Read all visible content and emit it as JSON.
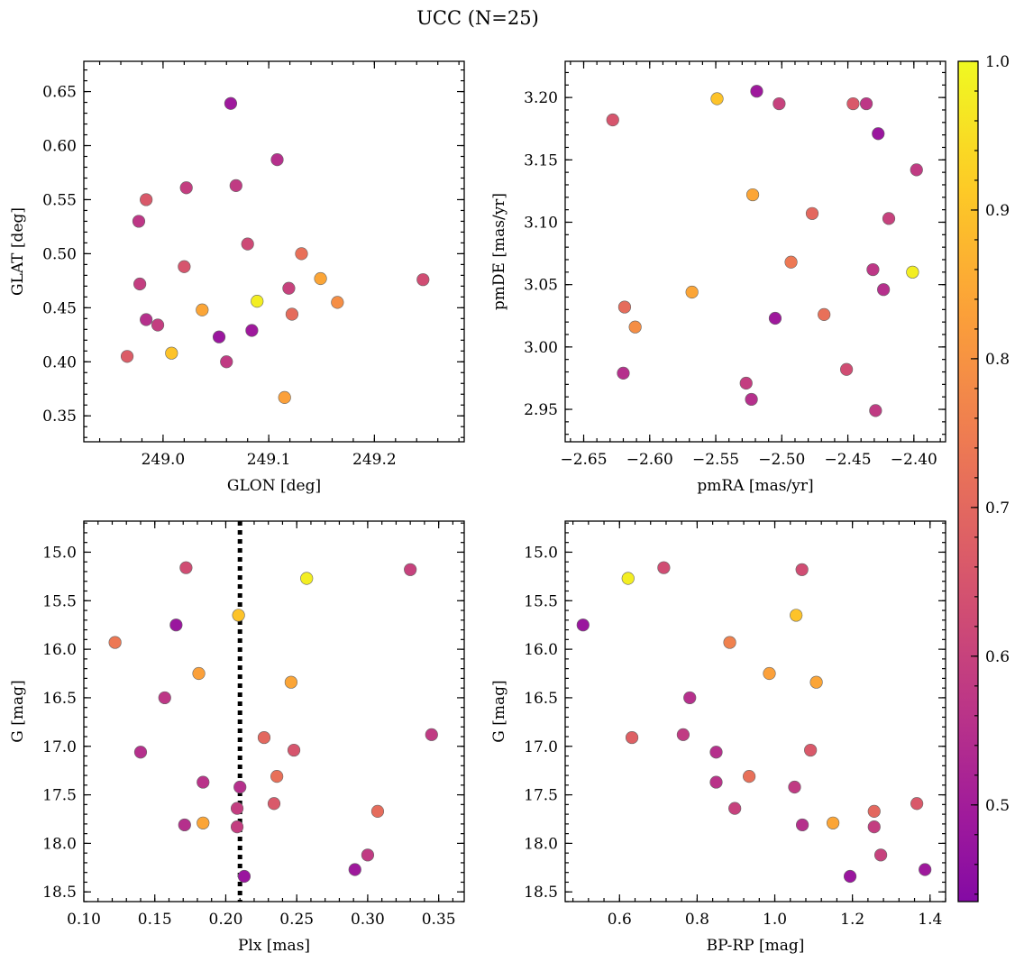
{
  "figure": {
    "title": "UCC (N=25)"
  },
  "colorbar": {
    "min": 0.435,
    "max": 1.0,
    "ticks": [
      0.5,
      0.6,
      0.7,
      0.8,
      0.9,
      1.0
    ],
    "tick_labels": [
      "0.5",
      "0.6",
      "0.7",
      "0.8",
      "0.9",
      "1.0"
    ],
    "colormap": "plasma"
  },
  "chart_data": [
    {
      "type": "scatter",
      "xlabel": "GLON [deg]",
      "ylabel": "GLAT [deg]",
      "xlim": [
        248.925,
        249.285
      ],
      "ylim": [
        0.326,
        0.678
      ],
      "xticks": [
        249.0,
        249.1,
        249.2
      ],
      "xtick_labels": [
        "249.0",
        "249.1",
        "249.2"
      ],
      "yticks": [
        0.35,
        0.4,
        0.45,
        0.5,
        0.55,
        0.6,
        0.65
      ],
      "ytick_labels": [
        "0.35",
        "0.40",
        "0.45",
        "0.50",
        "0.55",
        "0.60",
        "0.65"
      ],
      "x": [
        249.064,
        249.108,
        249.069,
        249.022,
        248.984,
        248.977,
        249.08,
        249.131,
        249.02,
        249.149,
        249.246,
        248.978,
        249.119,
        249.165,
        249.037,
        249.089,
        249.122,
        248.984,
        248.995,
        249.084,
        249.053,
        249.008,
        248.966,
        249.06,
        249.115
      ],
      "y": [
        0.639,
        0.587,
        0.563,
        0.561,
        0.55,
        0.53,
        0.509,
        0.5,
        0.488,
        0.477,
        0.476,
        0.472,
        0.468,
        0.455,
        0.448,
        0.456,
        0.444,
        0.439,
        0.434,
        0.429,
        0.423,
        0.408,
        0.405,
        0.4,
        0.367
      ],
      "c": [
        0.49,
        0.55,
        0.58,
        0.59,
        0.66,
        0.57,
        0.62,
        0.72,
        0.65,
        0.84,
        0.63,
        0.59,
        0.6,
        0.79,
        0.84,
        0.98,
        0.71,
        0.55,
        0.59,
        0.49,
        0.48,
        0.9,
        0.67,
        0.58,
        0.83
      ]
    },
    {
      "type": "scatter",
      "xlabel": "pmRA [mas/yr]",
      "ylabel": "pmDE [mas/yr]",
      "xlim": [
        -2.664,
        -2.376
      ],
      "ylim": [
        2.924,
        3.229
      ],
      "xticks": [
        -2.65,
        -2.6,
        -2.55,
        -2.5,
        -2.45,
        -2.4
      ],
      "xtick_labels": [
        "−2.65",
        "−2.60",
        "−2.55",
        "−2.50",
        "−2.45",
        "−2.40"
      ],
      "yticks": [
        2.95,
        3.0,
        3.05,
        3.1,
        3.15,
        3.2
      ],
      "ytick_labels": [
        "2.95",
        "3.00",
        "3.05",
        "3.10",
        "3.15",
        "3.20"
      ],
      "x": [
        -2.519,
        -2.549,
        -2.502,
        -2.446,
        -2.436,
        -2.628,
        -2.427,
        -2.398,
        -2.522,
        -2.477,
        -2.419,
        -2.493,
        -2.401,
        -2.431,
        -2.423,
        -2.619,
        -2.568,
        -2.468,
        -2.505,
        -2.611,
        -2.451,
        -2.62,
        -2.527,
        -2.523,
        -2.429
      ],
      "y": [
        3.205,
        3.199,
        3.195,
        3.195,
        3.195,
        3.182,
        3.171,
        3.142,
        3.122,
        3.107,
        3.103,
        3.068,
        3.06,
        3.062,
        3.046,
        3.032,
        3.044,
        3.026,
        3.023,
        3.016,
        2.982,
        2.979,
        2.971,
        2.958,
        2.949
      ],
      "c": [
        0.49,
        0.9,
        0.6,
        0.66,
        0.57,
        0.65,
        0.48,
        0.58,
        0.84,
        0.7,
        0.6,
        0.74,
        0.98,
        0.57,
        0.55,
        0.71,
        0.84,
        0.72,
        0.49,
        0.79,
        0.63,
        0.55,
        0.59,
        0.55,
        0.58
      ]
    },
    {
      "type": "scatter",
      "xlabel": "Plx [mas]",
      "ylabel": "G [mag]",
      "xlim": [
        0.1,
        0.368
      ],
      "ylim": [
        18.6,
        14.68
      ],
      "y_inverted": true,
      "vline_x": 0.21,
      "xticks": [
        0.1,
        0.15,
        0.2,
        0.25,
        0.3,
        0.35
      ],
      "xtick_labels": [
        "0.10",
        "0.15",
        "0.20",
        "0.25",
        "0.30",
        "0.35"
      ],
      "yticks": [
        15.0,
        15.5,
        16.0,
        16.5,
        17.0,
        17.5,
        18.0,
        18.5
      ],
      "ytick_labels": [
        "15.0",
        "15.5",
        "16.0",
        "16.5",
        "17.0",
        "17.5",
        "18.0",
        "18.5"
      ],
      "x": [
        0.172,
        0.33,
        0.257,
        0.209,
        0.165,
        0.122,
        0.181,
        0.246,
        0.157,
        0.345,
        0.227,
        0.14,
        0.248,
        0.236,
        0.184,
        0.21,
        0.234,
        0.208,
        0.307,
        0.184,
        0.171,
        0.208,
        0.3,
        0.291,
        0.213
      ],
      "y": [
        15.16,
        15.18,
        15.27,
        15.65,
        15.75,
        15.93,
        16.25,
        16.34,
        16.5,
        16.88,
        16.91,
        17.06,
        17.04,
        17.31,
        17.37,
        17.42,
        17.59,
        17.64,
        17.67,
        17.79,
        17.81,
        17.83,
        18.12,
        18.27,
        18.34
      ],
      "c": [
        0.63,
        0.6,
        0.98,
        0.9,
        0.48,
        0.74,
        0.83,
        0.84,
        0.57,
        0.58,
        0.7,
        0.55,
        0.65,
        0.72,
        0.56,
        0.55,
        0.66,
        0.59,
        0.71,
        0.84,
        0.55,
        0.59,
        0.58,
        0.49,
        0.48
      ]
    },
    {
      "type": "scatter",
      "xlabel": "BP-RP [mag]",
      "ylabel": "G [mag]",
      "xlim": [
        0.46,
        1.44
      ],
      "ylim": [
        18.6,
        14.68
      ],
      "y_inverted": true,
      "xticks": [
        0.6,
        0.8,
        1.0,
        1.2,
        1.4
      ],
      "xtick_labels": [
        "0.6",
        "0.8",
        "1.0",
        "1.2",
        "1.4"
      ],
      "yticks": [
        15.0,
        15.5,
        16.0,
        16.5,
        17.0,
        17.5,
        18.0,
        18.5
      ],
      "ytick_labels": [
        "15.0",
        "15.5",
        "16.0",
        "16.5",
        "17.0",
        "17.5",
        "18.0",
        "18.5"
      ],
      "x": [
        0.714,
        1.07,
        0.622,
        1.055,
        0.506,
        0.884,
        0.986,
        1.107,
        0.781,
        0.764,
        0.632,
        0.849,
        1.092,
        0.934,
        0.849,
        1.051,
        1.366,
        0.897,
        1.256,
        1.15,
        1.071,
        1.256,
        1.273,
        1.387,
        1.194
      ],
      "y": [
        15.16,
        15.18,
        15.27,
        15.65,
        15.75,
        15.93,
        16.25,
        16.34,
        16.5,
        16.88,
        16.91,
        17.06,
        17.04,
        17.31,
        17.37,
        17.42,
        17.59,
        17.64,
        17.67,
        17.79,
        17.81,
        17.83,
        18.12,
        18.27,
        18.34
      ],
      "c": [
        0.63,
        0.63,
        0.98,
        0.9,
        0.48,
        0.76,
        0.83,
        0.84,
        0.55,
        0.58,
        0.68,
        0.55,
        0.66,
        0.72,
        0.56,
        0.58,
        0.66,
        0.6,
        0.7,
        0.84,
        0.55,
        0.59,
        0.6,
        0.49,
        0.48
      ]
    }
  ]
}
